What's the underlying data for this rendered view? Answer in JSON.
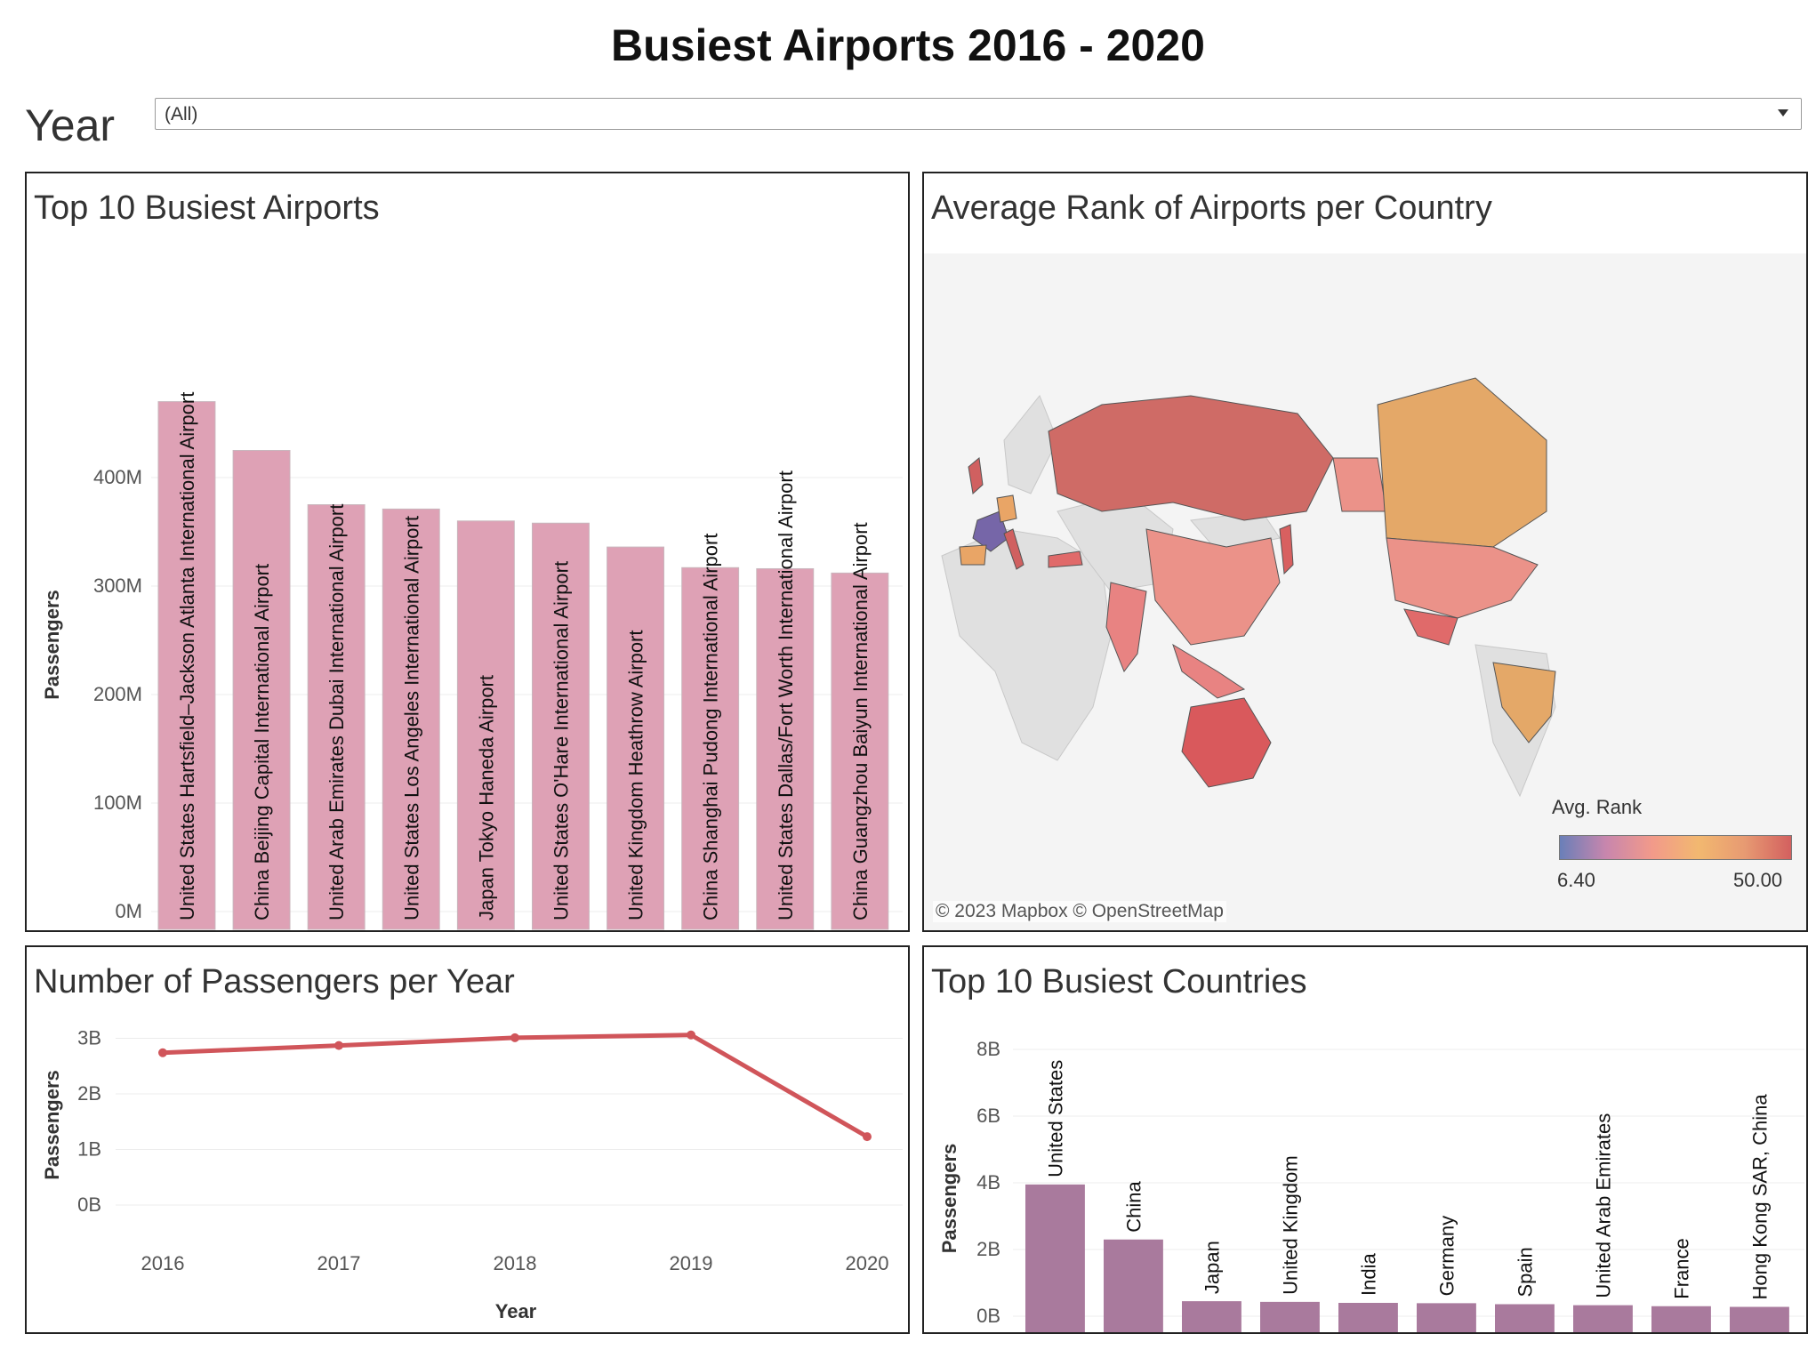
{
  "dashboard": {
    "title": "Busiest Airports 2016 - 2020",
    "filter": {
      "label": "Year",
      "value": "(All)"
    }
  },
  "chart_data": [
    {
      "type": "bar",
      "title": "Top 10 Busiest Airports",
      "ylabel": "Passengers",
      "ylim": [
        0,
        500000000
      ],
      "yticks": [
        "0M",
        "100M",
        "200M",
        "300M",
        "400M"
      ],
      "categories": [
        "United States Hartsfield–Jackson Atlanta International Airport",
        "China Beijing Capital International Airport",
        "United Arab Emirates Dubai International Airport",
        "United States Los Angeles International Airport",
        "Japan Tokyo Haneda Airport",
        "United States O'Hare International Airport",
        "United Kingdom Heathrow Airport",
        "China Shanghai Pudong International Airport",
        "United States Dallas/Fort Worth International Airport",
        "China Guangzhou Baiyun International Airport"
      ],
      "values": [
        470000000,
        425000000,
        375000000,
        371000000,
        360000000,
        358000000,
        336000000,
        317000000,
        316000000,
        312000000
      ],
      "color": "#dea1b5"
    },
    {
      "type": "map",
      "title": "Average Rank of Airports per Country",
      "legend": {
        "title": "Avg. Rank",
        "min": "6.40",
        "max": "50.00"
      },
      "credit": "© 2023 Mapbox  © OpenStreetMap"
    },
    {
      "type": "line",
      "title": "Number of Passengers per Year",
      "xlabel": "Year",
      "ylabel": "Passengers",
      "x": [
        "2016",
        "2017",
        "2018",
        "2019",
        "2020"
      ],
      "values": [
        2740000000,
        2870000000,
        3010000000,
        3060000000,
        1230000000
      ],
      "yticks": [
        "0B",
        "1B",
        "2B",
        "3B"
      ],
      "ylim": [
        0,
        3200000000
      ],
      "color": "#d0555a"
    },
    {
      "type": "bar",
      "title": "Top 10 Busiest Countries",
      "ylabel": "Passengers",
      "ylim": [
        0,
        8000000000
      ],
      "yticks": [
        "0B",
        "2B",
        "4B",
        "6B",
        "8B"
      ],
      "categories": [
        "United States",
        "China",
        "Japan",
        "United Kingdom",
        "India",
        "Germany",
        "Spain",
        "United Arab Emirates",
        "France",
        "Hong Kong SAR, China"
      ],
      "values": [
        3950000000,
        2300000000,
        450000000,
        430000000,
        400000000,
        390000000,
        360000000,
        330000000,
        300000000,
        280000000
      ],
      "color": "#a97a9d"
    }
  ]
}
